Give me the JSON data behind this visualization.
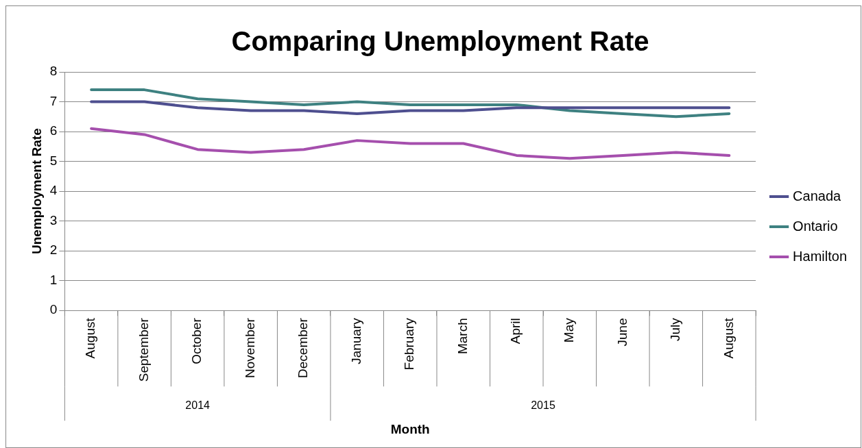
{
  "chart_data": {
    "type": "line",
    "title": "Comparing Unemployment Rate",
    "xlabel": "Month",
    "ylabel": "Unemployment Rate",
    "categories": [
      "August",
      "September",
      "October",
      "November",
      "December",
      "January",
      "February",
      "March",
      "April",
      "May",
      "June",
      "July",
      "August"
    ],
    "series": [
      {
        "name": "Canada",
        "color": "#4e4f8f",
        "values": [
          7.0,
          7.0,
          6.8,
          6.7,
          6.7,
          6.6,
          6.7,
          6.7,
          6.8,
          6.8,
          6.8,
          6.8,
          6.8
        ]
      },
      {
        "name": "Ontario",
        "color": "#3e8181",
        "values": [
          7.4,
          7.4,
          7.1,
          7.0,
          6.9,
          7.0,
          6.9,
          6.9,
          6.9,
          6.7,
          6.6,
          6.5,
          6.6
        ]
      },
      {
        "name": "Hamilton",
        "color": "#a54fad",
        "values": [
          6.1,
          5.9,
          5.4,
          5.3,
          5.4,
          5.7,
          5.6,
          5.6,
          5.2,
          5.1,
          5.2,
          5.3,
          5.2
        ]
      }
    ],
    "annotations": [
      "2014",
      "2015"
    ],
    "ylim": [
      0,
      8
    ],
    "yticks": [
      0,
      1,
      2,
      3,
      4,
      5,
      6,
      7,
      8
    ],
    "grid": "y",
    "legend": "right",
    "marker": "none",
    "line_style": "solid"
  }
}
